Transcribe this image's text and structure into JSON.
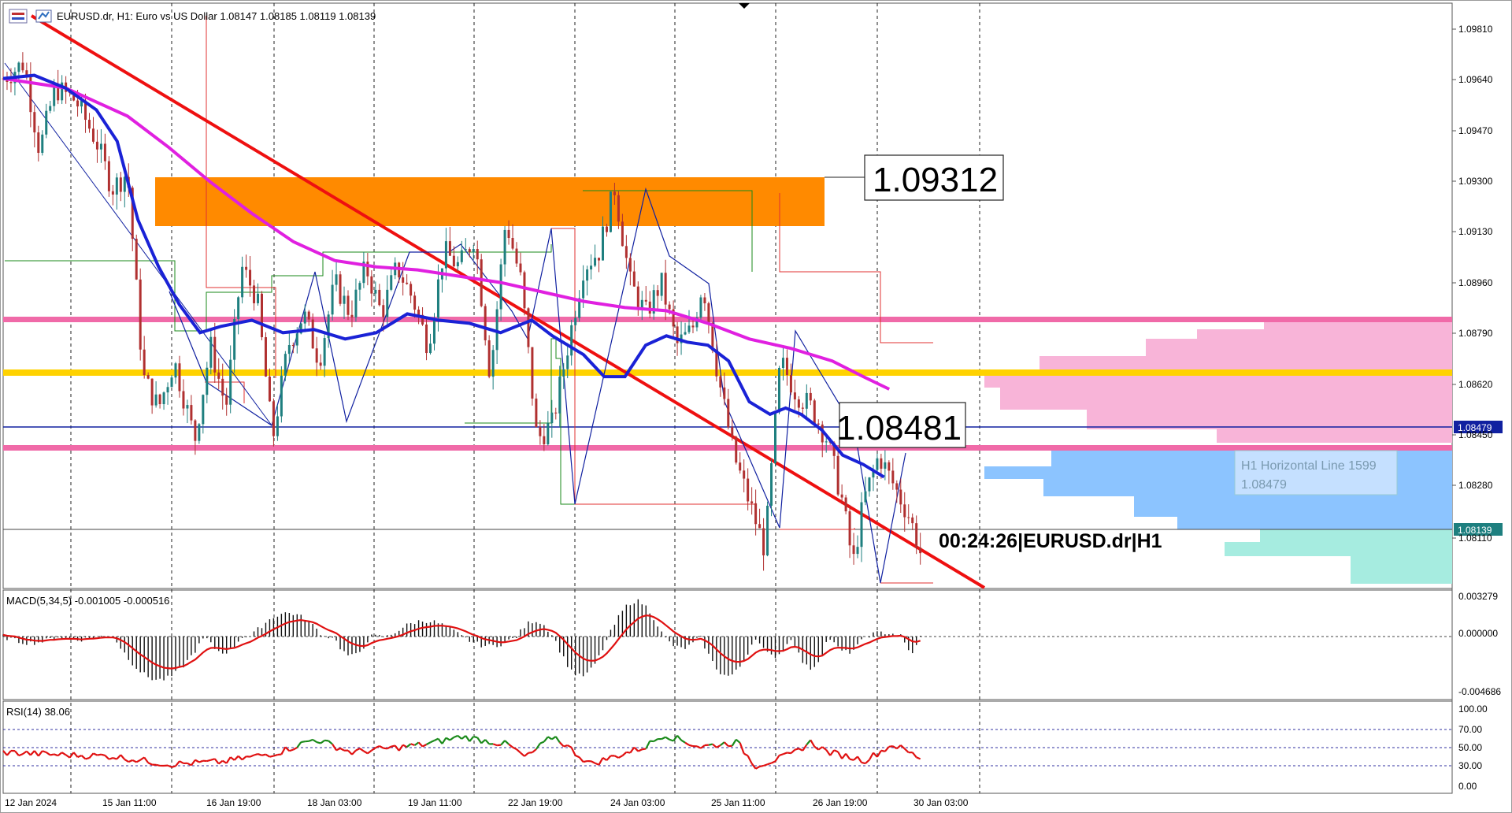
{
  "header": {
    "symbol_line": "EURUSD.dr, H1:  Euro vs US Dollar  1.08147 1.08185 1.08119 1.08139"
  },
  "indicators": {
    "macd_label": "MACD(5,34,5) -0.001005 -0.000516",
    "rsi_label": "RSI(14) 38.06"
  },
  "annotations": {
    "box_high": "1.09312",
    "box_mid": "1.08481",
    "countdown": "00:24:26|EURUSD.dr|H1",
    "hline_title": "H1 Horizontal Line 1599",
    "hline_value": "1.08479",
    "tag_blue": "1.08479",
    "tag_current": "1.08139"
  },
  "price_axis": [
    "1.09810",
    "1.09640",
    "1.09470",
    "1.09300",
    "1.09130",
    "1.08960",
    "1.08790",
    "1.08620",
    "1.08450",
    "1.08280",
    "1.08110"
  ],
  "macd_axis": [
    "0.003279",
    "0.000000",
    "-0.004686"
  ],
  "rsi_axis": [
    "100.00",
    "70.00",
    "50.00",
    "30.00",
    "0.00"
  ],
  "time_axis": [
    "12 Jan 2024",
    "15 Jan 11:00",
    "16 Jan 19:00",
    "18 Jan 03:00",
    "19 Jan 11:00",
    "22 Jan 19:00",
    "24 Jan 03:00",
    "25 Jan 11:00",
    "26 Jan 19:00",
    "30 Jan 03:00"
  ],
  "colors": {
    "bull_candle": "#1e7f7f",
    "bear_candle": "#b03030",
    "ema_fast": "#1a22d6",
    "ema_slow": "#e020e0",
    "trendline": "#ee1010",
    "supply_zone": "#ff8a00",
    "pink_level": "#f06aa8",
    "yellow_level": "#ffd200",
    "blue_level": "#1020a0",
    "vp_pink": "#f8b4d8",
    "vp_blue": "#8cc4ff",
    "vp_teal": "#a6ece0"
  },
  "chart_data": {
    "type": "candlestick",
    "symbol": "EURUSD.dr",
    "timeframe": "H1",
    "ylim": [
      1.0803,
      1.0988
    ],
    "levels": {
      "supply_zone": [
        1.0916,
        1.09312
      ],
      "pink_upper": 1.08815,
      "yellow": 1.0864,
      "blue": 1.08479,
      "pink_lower": 1.0841,
      "current": 1.08139
    },
    "trendline": {
      "from": [
        0,
        1.099
      ],
      "to": [
        1.0,
        1.0803
      ]
    },
    "price_path": [
      [
        0,
        1.0965
      ],
      [
        0.02,
        1.097
      ],
      [
        0.035,
        1.0942
      ],
      [
        0.05,
        1.0962
      ],
      [
        0.07,
        1.0958
      ],
      [
        0.09,
        1.0945
      ],
      [
        0.105,
        1.093
      ],
      [
        0.12,
        1.0935
      ],
      [
        0.135,
        1.087
      ],
      [
        0.15,
        1.086
      ],
      [
        0.165,
        1.0875
      ],
      [
        0.185,
        1.085
      ],
      [
        0.2,
        1.088
      ],
      [
        0.215,
        1.086
      ],
      [
        0.23,
        1.0905
      ],
      [
        0.245,
        1.0895
      ],
      [
        0.26,
        1.085
      ],
      [
        0.275,
        1.088
      ],
      [
        0.29,
        1.089
      ],
      [
        0.305,
        1.0875
      ],
      [
        0.32,
        1.09
      ],
      [
        0.335,
        1.089
      ],
      [
        0.35,
        1.0905
      ],
      [
        0.365,
        1.089
      ],
      [
        0.38,
        1.0905
      ],
      [
        0.395,
        1.0895
      ],
      [
        0.41,
        1.088
      ],
      [
        0.425,
        1.091
      ],
      [
        0.44,
        1.0905
      ],
      [
        0.455,
        1.0915
      ],
      [
        0.47,
        1.087
      ],
      [
        0.485,
        1.092
      ],
      [
        0.5,
        1.09
      ],
      [
        0.515,
        1.085
      ],
      [
        0.53,
        1.0855
      ],
      [
        0.545,
        1.088
      ],
      [
        0.56,
        1.0905
      ],
      [
        0.575,
        1.091
      ],
      [
        0.59,
        1.093
      ],
      [
        0.605,
        1.09
      ],
      [
        0.62,
        1.089
      ],
      [
        0.635,
        1.09
      ],
      [
        0.65,
        1.088
      ],
      [
        0.665,
        1.0885
      ],
      [
        0.675,
        1.09
      ],
      [
        0.69,
        1.087
      ],
      [
        0.705,
        1.0845
      ],
      [
        0.72,
        1.083
      ],
      [
        0.735,
        1.0815
      ],
      [
        0.75,
        1.0875
      ],
      [
        0.765,
        1.0865
      ],
      [
        0.78,
        1.086
      ],
      [
        0.795,
        1.085
      ],
      [
        0.81,
        1.083
      ],
      [
        0.82,
        1.081
      ],
      [
        0.83,
        1.083
      ],
      [
        0.845,
        1.0845
      ],
      [
        0.86,
        1.0835
      ],
      [
        0.875,
        1.0825
      ],
      [
        0.885,
        1.0814
      ]
    ],
    "ema_fast": [
      [
        0,
        1.0965
      ],
      [
        0.03,
        1.0966
      ],
      [
        0.06,
        1.0962
      ],
      [
        0.09,
        1.0955
      ],
      [
        0.11,
        1.0945
      ],
      [
        0.13,
        1.092
      ],
      [
        0.15,
        1.0905
      ],
      [
        0.17,
        1.0893
      ],
      [
        0.19,
        1.0884
      ],
      [
        0.21,
        1.0886
      ],
      [
        0.24,
        1.0888
      ],
      [
        0.27,
        1.0884
      ],
      [
        0.3,
        1.0885
      ],
      [
        0.33,
        1.0882
      ],
      [
        0.36,
        1.0884
      ],
      [
        0.39,
        1.089
      ],
      [
        0.42,
        1.0888
      ],
      [
        0.45,
        1.0887
      ],
      [
        0.48,
        1.0884
      ],
      [
        0.51,
        1.0888
      ],
      [
        0.53,
        1.0883
      ],
      [
        0.56,
        1.0877
      ],
      [
        0.58,
        1.087
      ],
      [
        0.6,
        1.087
      ],
      [
        0.62,
        1.088
      ],
      [
        0.64,
        1.0883
      ],
      [
        0.66,
        1.0881
      ],
      [
        0.68,
        1.088
      ],
      [
        0.7,
        1.0875
      ],
      [
        0.72,
        1.0862
      ],
      [
        0.74,
        1.0858
      ],
      [
        0.755,
        1.086
      ],
      [
        0.77,
        1.0858
      ],
      [
        0.79,
        1.0853
      ],
      [
        0.81,
        1.0845
      ],
      [
        0.83,
        1.0842
      ],
      [
        0.85,
        1.0838
      ]
    ],
    "ema_slow": [
      [
        0,
        1.0965
      ],
      [
        0.06,
        1.0962
      ],
      [
        0.12,
        1.0953
      ],
      [
        0.16,
        1.0943
      ],
      [
        0.2,
        1.0932
      ],
      [
        0.24,
        1.0922
      ],
      [
        0.28,
        1.0913
      ],
      [
        0.32,
        1.0907
      ],
      [
        0.36,
        1.0905
      ],
      [
        0.4,
        1.0904
      ],
      [
        0.44,
        1.0902
      ],
      [
        0.48,
        1.09
      ],
      [
        0.52,
        1.0897
      ],
      [
        0.56,
        1.0894
      ],
      [
        0.6,
        1.0892
      ],
      [
        0.64,
        1.0891
      ],
      [
        0.68,
        1.0887
      ],
      [
        0.72,
        1.0882
      ],
      [
        0.76,
        1.0879
      ],
      [
        0.8,
        1.0875
      ],
      [
        0.83,
        1.087
      ],
      [
        0.855,
        1.0866
      ]
    ],
    "macd_ylim": [
      -0.004686,
      0.003279
    ],
    "rsi_ylim": [
      0,
      100
    ],
    "rsi_levels": [
      70,
      50,
      30
    ]
  }
}
